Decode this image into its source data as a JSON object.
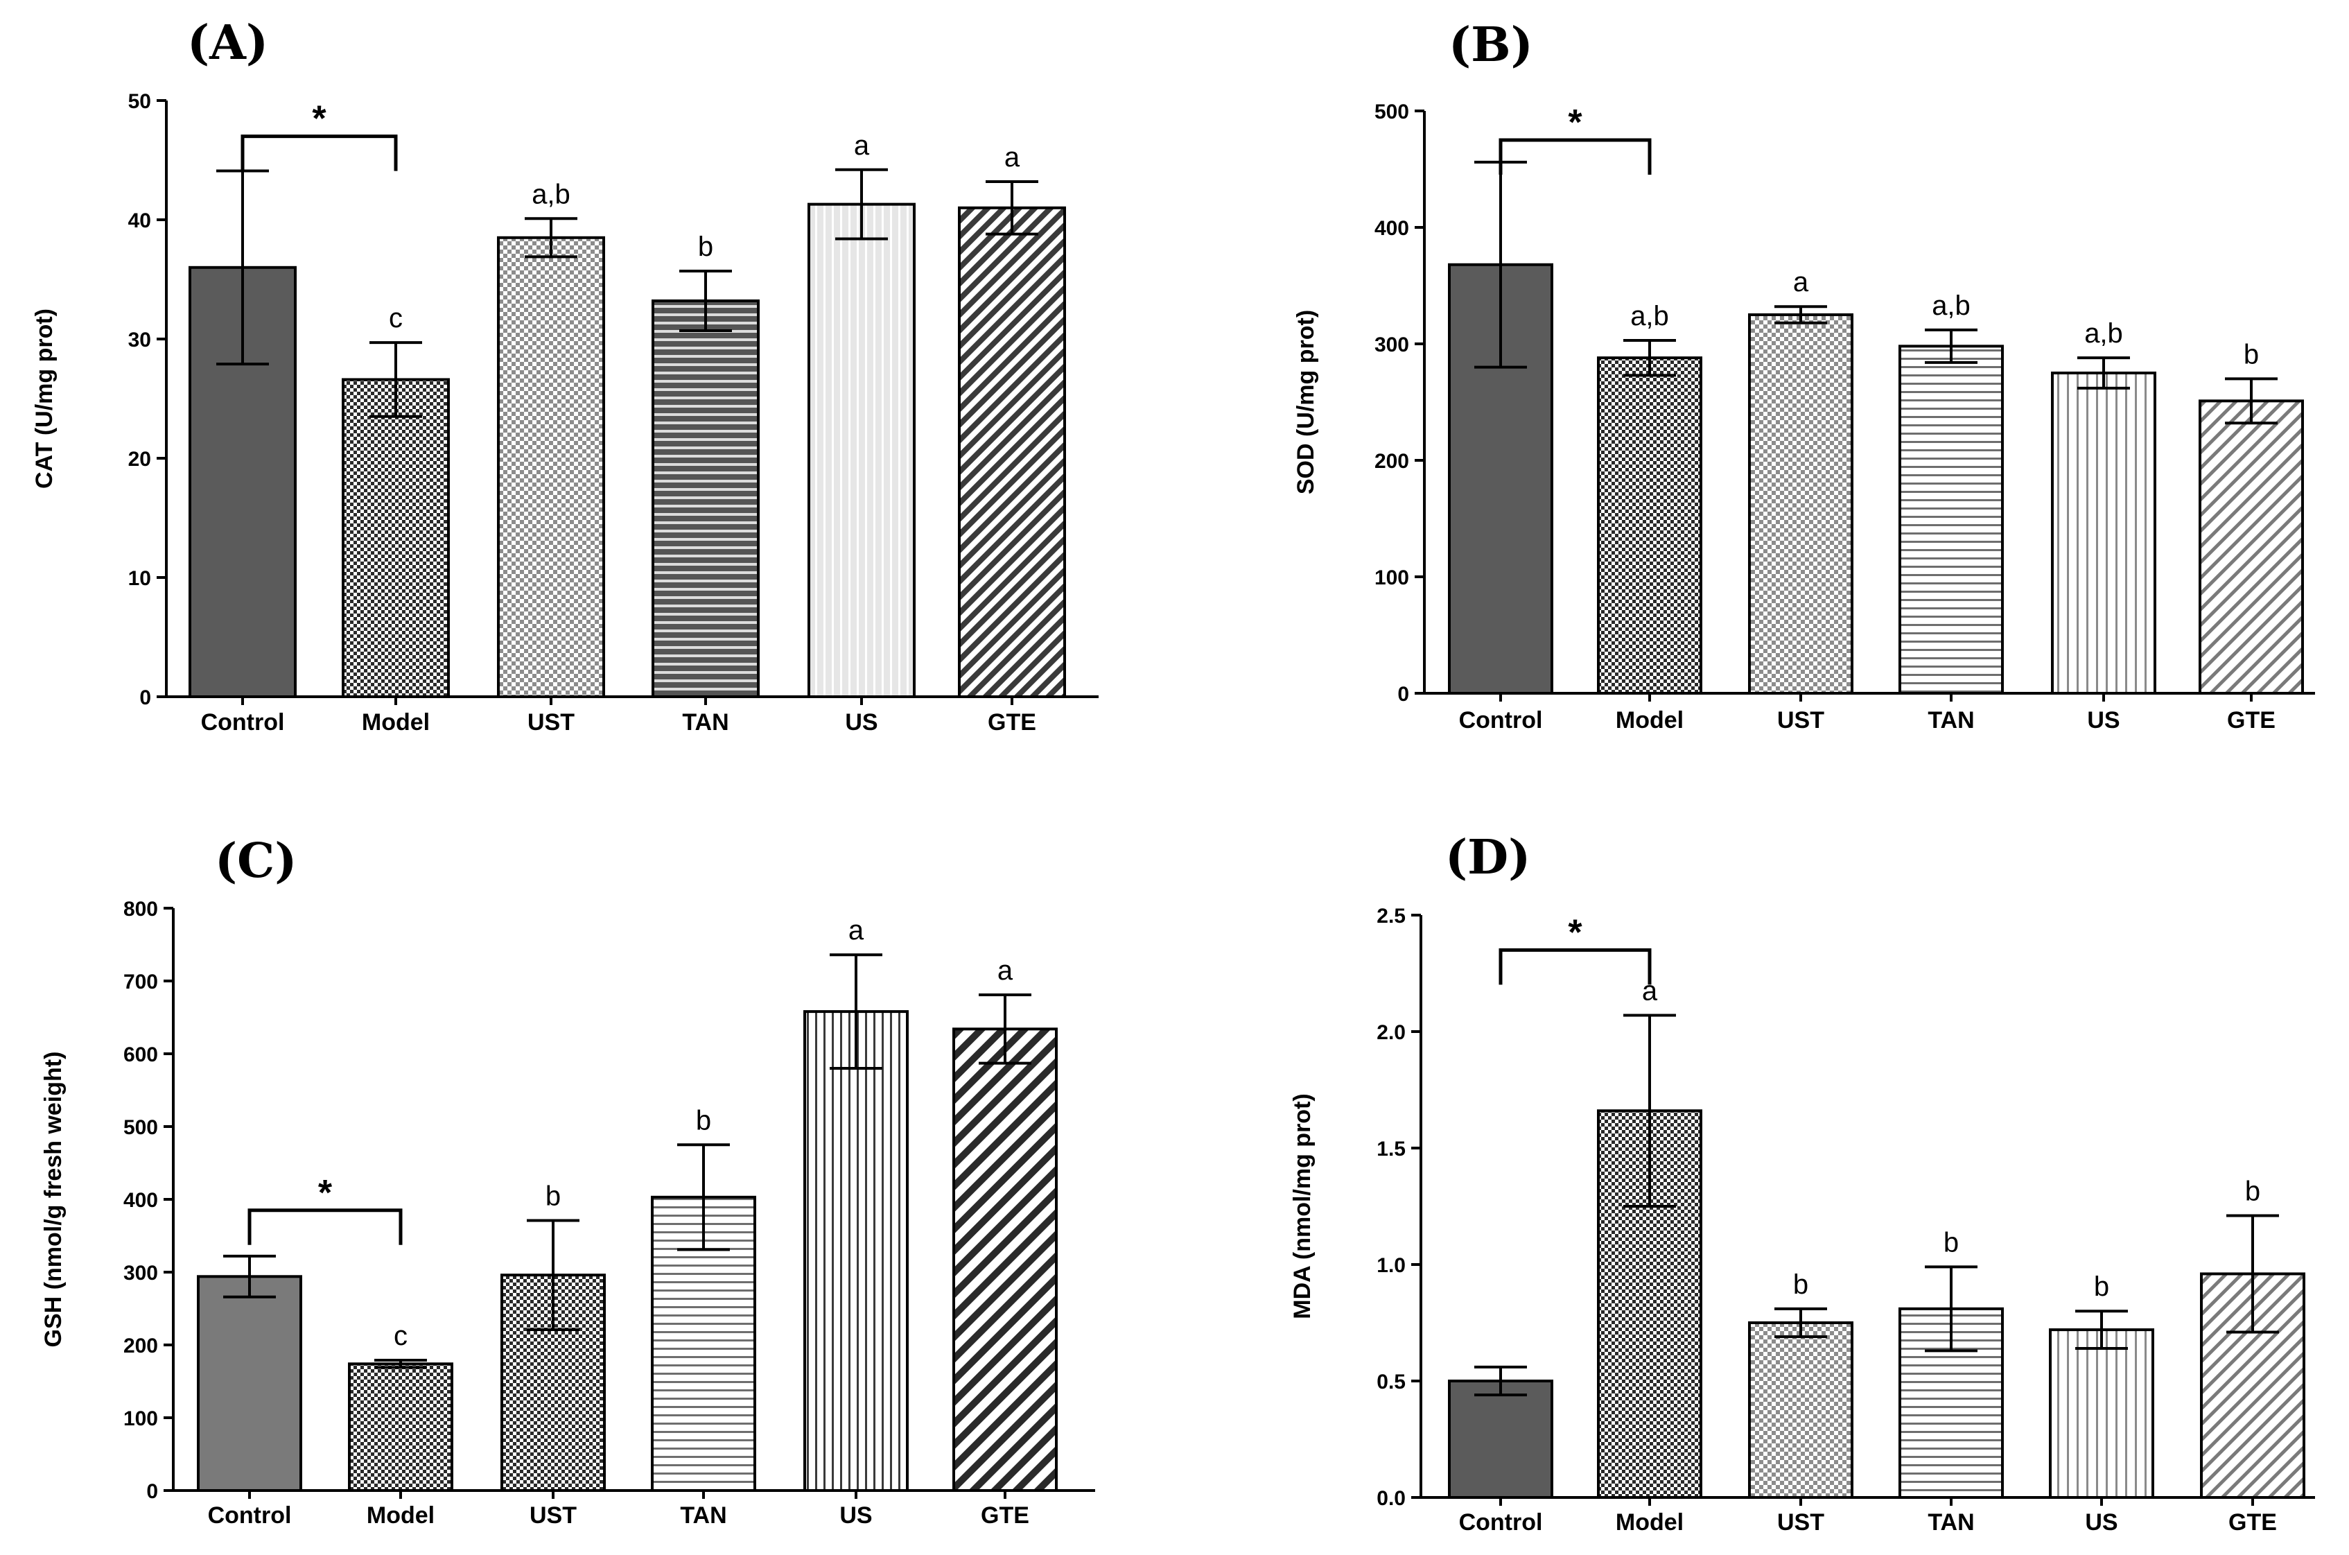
{
  "chart_data": [
    {
      "type": "bar",
      "panel": "(A)",
      "ylabel": "CAT (U/mg prot)",
      "ylim": [
        0,
        50
      ],
      "yticks": [
        0,
        10,
        20,
        30,
        40,
        50
      ],
      "categories": [
        "Control",
        "Model",
        "UST",
        "TAN",
        "US",
        "GTE"
      ],
      "values": [
        36,
        26.6,
        38.5,
        33.2,
        41.3,
        41
      ],
      "errors": [
        8.1,
        3.1,
        1.6,
        2.5,
        2.9,
        2.2
      ],
      "letters": [
        "",
        "c",
        "a,b",
        "b",
        "a",
        "a"
      ],
      "significance": {
        "from": 0,
        "to": 1,
        "label": "*",
        "y": 47
      }
    },
    {
      "type": "bar",
      "panel": "(B)",
      "ylabel": "SOD (U/mg prot)",
      "ylim": [
        0,
        500
      ],
      "yticks": [
        0,
        100,
        200,
        300,
        400,
        500
      ],
      "categories": [
        "Control",
        "Model",
        "UST",
        "TAN",
        "US",
        "GTE"
      ],
      "values": [
        368,
        288,
        325,
        298,
        275,
        251
      ],
      "errors": [
        88,
        15,
        7,
        14,
        13,
        19
      ],
      "letters": [
        "",
        "a,b",
        "a",
        "a,b",
        "a,b",
        "b"
      ],
      "significance": {
        "from": 0,
        "to": 1,
        "label": "*",
        "y": 475
      }
    },
    {
      "type": "bar",
      "panel": "(C)",
      "ylabel": "GSH (nmol/g fresh weight)",
      "ylim": [
        0,
        800
      ],
      "yticks": [
        0,
        100,
        200,
        300,
        400,
        500,
        600,
        700,
        800
      ],
      "categories": [
        "Control",
        "Model",
        "UST",
        "TAN",
        "US",
        "GTE"
      ],
      "values": [
        294,
        174,
        296,
        403,
        658,
        634
      ],
      "errors": [
        28,
        5,
        75,
        72,
        78,
        47
      ],
      "letters": [
        "",
        "c",
        "b",
        "b",
        "a",
        "a"
      ],
      "significance": {
        "from": 0,
        "to": 1,
        "label": "*",
        "y": 385
      }
    },
    {
      "type": "bar",
      "panel": "(D)",
      "ylabel": "MDA (nmol/mg prot)",
      "ylim": [
        0,
        2.5
      ],
      "yticks": [
        "0.0",
        "0.5",
        "1.0",
        "1.5",
        "2.0",
        "2.5"
      ],
      "categories": [
        "Control",
        "Model",
        "UST",
        "TAN",
        "US",
        "GTE"
      ],
      "values": [
        0.5,
        1.66,
        0.75,
        0.81,
        0.72,
        0.96
      ],
      "errors": [
        0.06,
        0.41,
        0.06,
        0.18,
        0.08,
        0.25
      ],
      "letters": [
        "",
        "a",
        "b",
        "b",
        "b",
        "b"
      ],
      "significance": {
        "from": 0,
        "to": 1,
        "label": "*",
        "y": 2.35
      }
    }
  ]
}
